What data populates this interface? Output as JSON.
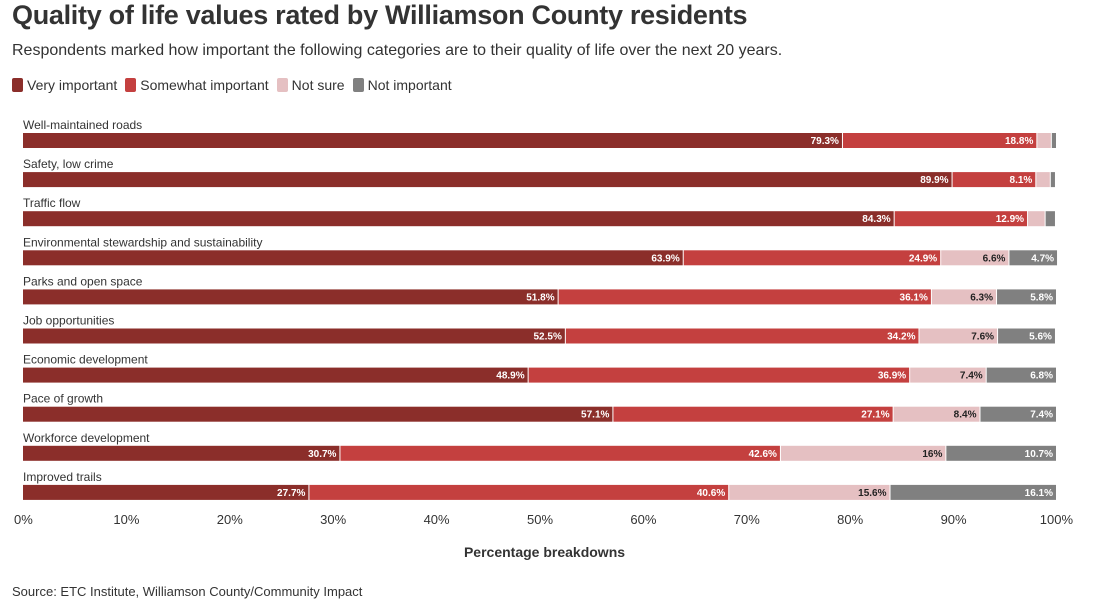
{
  "title": "Quality of life values rated by Williamson County residents",
  "subtitle": "Respondents marked how important the following categories are to their quality of life over the next 20 years.",
  "source": "Source: ETC Institute, Williamson County/Community Impact",
  "colors": {
    "very_important": "#8b2e2a",
    "somewhat_important": "#c4403f",
    "not_sure": "#e5c0c2",
    "not_important": "#808080"
  },
  "chart_data": {
    "type": "bar",
    "orientation": "horizontal",
    "stacked": true,
    "title": "Quality of life values rated by Williamson County residents",
    "subtitle": "Respondents marked how important the following categories are to their quality of life over the next 20 years.",
    "xlabel": "Percentage breakdowns",
    "ylabel": "",
    "xlim": [
      0,
      100
    ],
    "x_ticks": [
      "0%",
      "10%",
      "20%",
      "30%",
      "40%",
      "50%",
      "60%",
      "70%",
      "80%",
      "90%",
      "100%"
    ],
    "legend_position": "top-left",
    "categories": [
      "Well-maintained roads",
      "Safety, low crime",
      "Traffic flow",
      "Environmental stewardship and sustainability",
      "Parks and open space",
      "Job opportunities",
      "Economic development",
      "Pace of growth",
      "Workforce development",
      "Improved trails"
    ],
    "series": [
      {
        "name": "Very important",
        "values": [
          79.3,
          89.9,
          84.3,
          63.9,
          51.8,
          52.5,
          48.9,
          57.1,
          30.7,
          27.7
        ],
        "labels": [
          "79.3%",
          "89.9%",
          "84.3%",
          "63.9%",
          "51.8%",
          "52.5%",
          "48.9%",
          "57.1%",
          "30.7%",
          "27.7%"
        ]
      },
      {
        "name": "Somewhat important",
        "values": [
          18.8,
          8.1,
          12.9,
          24.9,
          36.1,
          34.2,
          36.9,
          27.1,
          42.6,
          40.6
        ],
        "labels": [
          "18.8%",
          "8.1%",
          "12.9%",
          "24.9%",
          "36.1%",
          "34.2%",
          "36.9%",
          "27.1%",
          "42.6%",
          "40.6%"
        ]
      },
      {
        "name": "Not sure",
        "values": [
          1.4,
          1.4,
          1.7,
          6.6,
          6.3,
          7.6,
          7.4,
          8.4,
          16,
          15.6
        ],
        "labels": [
          "",
          "",
          "",
          "6.6%",
          "6.3%",
          "7.6%",
          "7.4%",
          "8.4%",
          "16%",
          "15.6%"
        ]
      },
      {
        "name": "Not important",
        "values": [
          0.5,
          0.5,
          1.0,
          4.7,
          5.8,
          5.6,
          6.8,
          7.4,
          10.7,
          16.1
        ],
        "labels": [
          "",
          "",
          "",
          "4.7%",
          "5.8%",
          "5.6%",
          "6.8%",
          "7.4%",
          "10.7%",
          "16.1%"
        ]
      }
    ]
  }
}
